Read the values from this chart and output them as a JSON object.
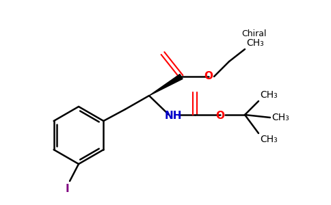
{
  "bg_color": "#ffffff",
  "bond_color": "#000000",
  "oxygen_color": "#ff0000",
  "nitrogen_color": "#0000cc",
  "iodine_color": "#800080",
  "chiral_label": "Chiral",
  "ch3_label": "CH₃",
  "nh_label": "NH",
  "o_label": "O",
  "i_label": "I",
  "figsize": [
    4.84,
    3.0
  ],
  "dpi": 100
}
